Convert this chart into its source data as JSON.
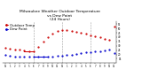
{
  "title": "Milwaukee Weather Outdoor Temperature\nvs Dew Point\n(24 Hours)",
  "title_fontsize": 3.2,
  "temp_color": "#cc0000",
  "dew_color": "#0000cc",
  "background": "#ffffff",
  "x_hours": [
    0,
    1,
    2,
    3,
    4,
    5,
    6,
    7,
    8,
    9,
    10,
    11,
    12,
    13,
    14,
    15,
    16,
    17,
    18,
    19,
    20,
    21,
    22,
    23
  ],
  "x_labels": [
    "12",
    "1",
    "2",
    "3",
    "4",
    "5",
    "6",
    "7",
    "8",
    "9",
    "10",
    "11",
    "12",
    "1",
    "2",
    "3",
    "4",
    "5",
    "6",
    "7",
    "8",
    "9",
    "10",
    "11"
  ],
  "temperature": [
    28,
    27,
    26,
    26,
    25,
    24,
    24,
    29,
    35,
    40,
    44,
    47,
    48,
    48,
    47,
    46,
    45,
    44,
    42,
    41,
    40,
    38,
    37,
    52
  ],
  "dew_point": [
    20,
    19,
    18,
    18,
    17,
    17,
    17,
    17,
    18,
    18,
    18,
    19,
    19,
    20,
    20,
    21,
    22,
    23,
    23,
    24,
    24,
    25,
    26,
    22
  ],
  "ylim": [
    10,
    58
  ],
  "ytick_vals": [
    15,
    20,
    25,
    30,
    35,
    40,
    45,
    50,
    55
  ],
  "ytick_labels": [
    "15",
    "20",
    "25",
    "30",
    "35",
    "40",
    "45",
    "50",
    "55"
  ],
  "vlines_x": [
    6,
    12,
    18
  ],
  "marker_size": 1.2,
  "legend_temp_label": "Outdoor Temp",
  "legend_dew_label": "Dew Point",
  "legend_fontsize": 2.8
}
